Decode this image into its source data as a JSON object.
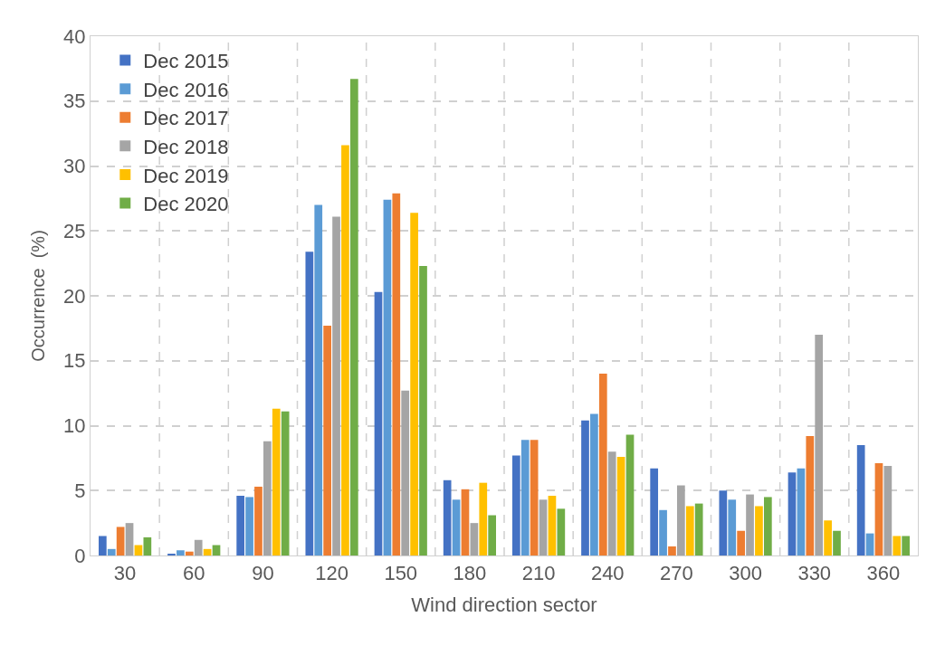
{
  "chart_data": {
    "type": "bar",
    "xlabel": "Wind direction sector",
    "ylabel": "Occurrence  (%)",
    "categories": [
      "30",
      "60",
      "90",
      "120",
      "150",
      "180",
      "210",
      "240",
      "270",
      "300",
      "330",
      "360"
    ],
    "series": [
      {
        "name": "Dec 2015",
        "color": "#4472c4",
        "values": [
          1.5,
          0.1,
          4.6,
          23.4,
          20.3,
          5.8,
          7.7,
          10.4,
          6.7,
          5.0,
          6.4,
          8.5
        ]
      },
      {
        "name": "Dec 2016",
        "color": "#5b9bd5",
        "values": [
          0.5,
          0.4,
          4.5,
          27.0,
          27.4,
          4.3,
          8.9,
          10.9,
          3.5,
          4.3,
          6.7,
          1.7
        ]
      },
      {
        "name": "Dec 2017",
        "color": "#ed7d31",
        "values": [
          2.2,
          0.3,
          5.3,
          17.7,
          27.9,
          5.1,
          8.9,
          14.0,
          0.7,
          1.9,
          9.2,
          7.1
        ]
      },
      {
        "name": "Dec 2018",
        "color": "#a5a5a5",
        "values": [
          2.5,
          1.2,
          8.8,
          26.1,
          12.7,
          2.5,
          4.3,
          8.0,
          5.4,
          4.7,
          17.0,
          6.9
        ]
      },
      {
        "name": "Dec 2019",
        "color": "#ffc000",
        "values": [
          0.8,
          0.5,
          11.3,
          31.6,
          26.4,
          5.6,
          4.6,
          7.6,
          3.8,
          3.8,
          2.7,
          1.5
        ]
      },
      {
        "name": "Dec 2020",
        "color": "#70ad47",
        "values": [
          1.4,
          0.8,
          11.1,
          36.7,
          22.3,
          3.1,
          3.6,
          9.3,
          4.0,
          4.5,
          1.9,
          1.5
        ]
      }
    ],
    "ylim": [
      0,
      40
    ],
    "yticks": [
      0,
      5,
      10,
      15,
      20,
      25,
      30,
      35,
      40
    ],
    "grid": true,
    "legend": "top left"
  }
}
